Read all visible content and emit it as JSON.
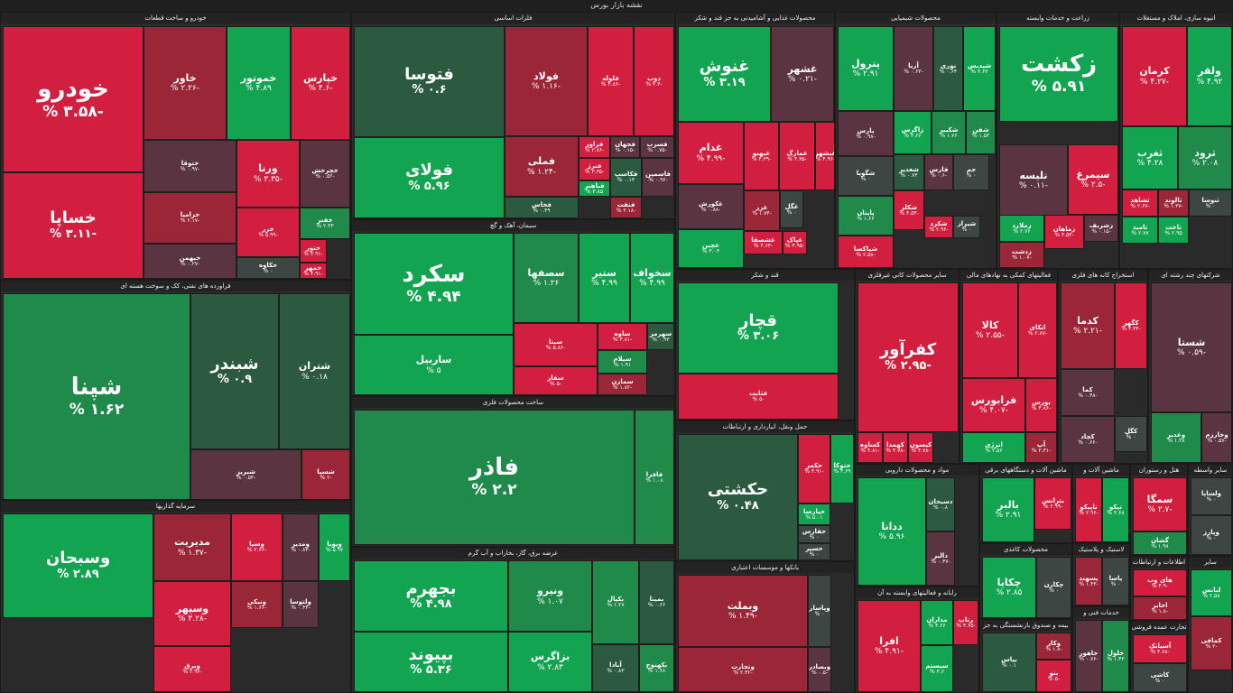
{
  "page": {
    "title": "نقشه بازار بورس"
  },
  "colors": {
    "pos_strong": "#13a452",
    "pos_medium": "#1f8a4a",
    "pos_weak": "#2c5a40",
    "neutral": "#3e4643",
    "neg_weak": "#5a3440",
    "neg_medium": "#9b2638",
    "neg_strong": "#d21f3f"
  },
  "sectors": [
    {
      "id": "auto",
      "title": "خودرو و ساخت قطعات",
      "tiles": [
        {
          "n": "خودرو",
          "p": "-۳.۵۸ %"
        },
        {
          "n": "خساپا",
          "p": "-۳.۱۱ %"
        },
        {
          "n": "خاور",
          "p": "-۲.۲۶ %"
        },
        {
          "n": "خموتور",
          "p": "۴.۸۹ %"
        },
        {
          "n": "خپارس",
          "p": "-۴.۶ %"
        },
        {
          "n": "ختوقا",
          "p": "-۰.۹۷ %"
        },
        {
          "n": "ورنا",
          "p": "-۳.۳۵ %"
        },
        {
          "n": "خچرخش",
          "p": "-۰.۵۲ %"
        },
        {
          "n": "خزامیا",
          "p": "-۲.۱۷ %"
        },
        {
          "n": "خزر",
          "p": "-۵.۹۹ %"
        },
        {
          "n": "خفنر",
          "p": "۲.۳۳ %"
        },
        {
          "n": "خبهمن",
          "p": "-۰.۲۷ %"
        },
        {
          "n": "خکاوه",
          "p": "۰ %"
        },
        {
          "n": "ختور",
          "p": "-۳.۹۱ %"
        },
        {
          "n": "خمهر",
          "p": "-۴.۹۱ %"
        }
      ]
    },
    {
      "id": "basic_metals",
      "title": "فلزات اساسی",
      "tiles": [
        {
          "n": "فتوسا",
          "p": "۰.۶ %"
        },
        {
          "n": "فولاد",
          "p": "-۱.۱۶ %"
        },
        {
          "n": "فلوله",
          "p": "-۴.۸۶ %"
        },
        {
          "n": "ذوب",
          "p": "-۳.۳ %"
        },
        {
          "n": "فولای",
          "p": "۵.۹۶ %"
        },
        {
          "n": "فملی",
          "p": "-۱.۲۴ %"
        },
        {
          "n": "فزاور",
          "p": "-۳.۸۶ %"
        },
        {
          "n": "فجهان",
          "p": "-۰.۱۵ %"
        },
        {
          "n": "فسرب",
          "p": "-۰.۷۵ %"
        },
        {
          "n": "فنرژ",
          "p": "-۳.۳۵ %"
        },
        {
          "n": "فباهنر",
          "p": "۳.۸۵ %"
        },
        {
          "n": "فکاسپ",
          "p": "۰.۱۳ %"
        },
        {
          "n": "فاسمین",
          "p": "-۰.۹۶ %"
        },
        {
          "n": "فخاس",
          "p": "۰.۴۹ %"
        },
        {
          "n": "فنفت",
          "p": "-۲.۱۸ %"
        }
      ]
    },
    {
      "id": "food",
      "title": "محصولات غذایی و آشامیدنی به جز قند و شکر",
      "tiles": [
        {
          "n": "غنوش",
          "p": "۳.۱۹ %"
        },
        {
          "n": "غشهر",
          "p": "-۰.۲۱ %"
        },
        {
          "n": "غدام",
          "p": "-۴.۹۹ %"
        },
        {
          "n": "غبهنو",
          "p": "-۴.۳۹ %"
        },
        {
          "n": "غمارگ",
          "p": "-۴.۳۵ %"
        },
        {
          "n": "غبشهر",
          "p": "-۴.۹۶ %"
        },
        {
          "n": "غکورش",
          "p": "-۰.۸۸ %"
        },
        {
          "n": "غزر",
          "p": "-۱.۷۳ %"
        },
        {
          "n": "غگل",
          "p": "۰ %"
        },
        {
          "n": "غچین",
          "p": "۴.۰۳ %"
        },
        {
          "n": "غشصفا",
          "p": "-۴.۶۳ %"
        },
        {
          "n": "غپاک",
          "p": "-۴.۹۵ %"
        }
      ]
    },
    {
      "id": "chemical",
      "title": "محصولات شیمیایی",
      "tiles": [
        {
          "n": "پترول",
          "p": "۲.۹۱ %"
        },
        {
          "n": "آریا",
          "p": "-۰.۶۳ %"
        },
        {
          "n": "نوری",
          "p": "۰.۶۴ %"
        },
        {
          "n": "شپدیس",
          "p": "۳.۶۳ %"
        },
        {
          "n": "پارس",
          "p": "-۰.۹۸ %"
        },
        {
          "n": "زاگرس",
          "p": "۳.۶۶ %"
        },
        {
          "n": "شکبیر",
          "p": "۱.۷۶ %"
        },
        {
          "n": "شفن",
          "p": "۱.۵۳ %"
        },
        {
          "n": "شگویا",
          "p": "۰ %"
        },
        {
          "n": "شغدیر",
          "p": "۰.۷۳ %"
        },
        {
          "n": "فارس",
          "p": "-۰.۶ %"
        },
        {
          "n": "جم",
          "p": "۰ %"
        },
        {
          "n": "پاپتان",
          "p": "۱.۶۶ %"
        },
        {
          "n": "شکلر",
          "p": "-۴.۵۳ %"
        },
        {
          "n": "شکرد",
          "p": "-۲.۹۶ %"
        },
        {
          "n": "شیراز",
          "p": "۰ %"
        },
        {
          "n": "شپاکسا",
          "p": "-۲.۵۸ %"
        }
      ]
    },
    {
      "id": "agri",
      "title": "زراعت و خدمات وابسته",
      "tiles": [
        {
          "n": "زکشت",
          "p": "۵.۹۱ %"
        },
        {
          "n": "تلیسه",
          "p": "-۰.۱۱ %"
        },
        {
          "n": "سیمرغ",
          "p": "-۲.۵ %"
        },
        {
          "n": "زملارد",
          "p": "۲.۷۶ %"
        },
        {
          "n": "زماهان",
          "p": "-۴.۵۳ %"
        },
        {
          "n": "زشریف",
          "p": "-۰.۱۵ %"
        },
        {
          "n": "زدشت",
          "p": "-۱.۰۷ %"
        }
      ]
    },
    {
      "id": "realestate",
      "title": "انبوه سازی، املاک و مستغلات",
      "tiles": [
        {
          "n": "کرمان",
          "p": "-۴.۲۷ %"
        },
        {
          "n": "ولقر",
          "p": "۴.۹۲ %"
        },
        {
          "n": "ثغرب",
          "p": "۴.۲۸ %"
        },
        {
          "n": "ثرود",
          "p": "۲.۰۸ %"
        },
        {
          "n": "ثشاهد",
          "p": "-۲.۶۷ %"
        },
        {
          "n": "ثالوند",
          "p": "-۱.۳۷ %"
        },
        {
          "n": "ثنوسا",
          "p": "۰ %"
        },
        {
          "n": "ثامید",
          "p": "۲.۷۷ %"
        },
        {
          "n": "ثاخت",
          "p": "۲.۹۵ %"
        }
      ]
    },
    {
      "id": "refinery",
      "title": "فراورده های نفتی، کک و سوخت هسته ای",
      "tiles": [
        {
          "n": "شپنا",
          "p": "۱.۶۲ %"
        },
        {
          "n": "شبندر",
          "p": "۰.۹ %"
        },
        {
          "n": "شتران",
          "p": "۰.۱۸ %"
        },
        {
          "n": "شبریز",
          "p": "-۰.۵۳ %"
        },
        {
          "n": "شسپا",
          "p": "-۲ %"
        }
      ]
    },
    {
      "id": "cement",
      "title": "سیمان، آهک و گچ",
      "tiles": [
        {
          "n": "سکرد",
          "p": "۴.۹۴ %"
        },
        {
          "n": "سصفها",
          "p": "۱.۲۶ %"
        },
        {
          "n": "ستیر",
          "p": "۴.۹۹ %"
        },
        {
          "n": "سخواف",
          "p": "۴.۹۹ %"
        },
        {
          "n": "ساربیل",
          "p": "۵ %"
        },
        {
          "n": "سیتا",
          "p": "-۵.۸۶ %"
        },
        {
          "n": "ساوه",
          "p": "-۳.۸۱ %"
        },
        {
          "n": "سهرمز",
          "p": "۰.۹۳ %"
        },
        {
          "n": "سیلام",
          "p": "۱.۹۱ %"
        },
        {
          "n": "سفار",
          "p": "-۵ %"
        },
        {
          "n": "سمازن",
          "p": "-۱.۸۲ %"
        }
      ]
    },
    {
      "id": "metal_products",
      "title": "ساخت محصولات فلزی",
      "tiles": [
        {
          "n": "فاذر",
          "p": "۲.۲ %"
        },
        {
          "n": "فافزا",
          "p": "۱.۰۸ %"
        }
      ]
    },
    {
      "id": "utilities",
      "title": "عرضه برق، گاز، بخاراب و آب گرم",
      "tiles": [
        {
          "n": "بجهرم",
          "p": "۴.۹۸ %"
        },
        {
          "n": "ونیرو",
          "p": "۱.۰۷ %"
        },
        {
          "n": "بکپال",
          "p": "۱.۲۷ %"
        },
        {
          "n": "بمپنا",
          "p": "۰.۶۶ %"
        },
        {
          "n": "بپیوند",
          "p": "۵.۳۶ %"
        },
        {
          "n": "بزاگرس",
          "p": "۲.۸۳ %"
        },
        {
          "n": "آبادا",
          "p": "۰.۸۳ %"
        },
        {
          "n": "بکهنوج",
          "p": "۱.۶۸ %"
        }
      ]
    },
    {
      "id": "sugar",
      "title": "قند و شکر",
      "tiles": [
        {
          "n": "قچار",
          "p": "۳.۰۶ %"
        },
        {
          "n": "قثابت",
          "p": "-۵ %"
        }
      ]
    },
    {
      "id": "transport",
      "title": "حمل ونقل، انبارداری و ارتباطات",
      "tiles": [
        {
          "n": "حکشتی",
          "p": "۰.۴۸ %"
        },
        {
          "n": "حکمر",
          "p": "-۴.۹۱ %"
        },
        {
          "n": "حتوکا",
          "p": "۴.۶۹ %"
        },
        {
          "n": "حپارسا",
          "p": "۵.۰۱ %"
        },
        {
          "n": "حفارس",
          "p": "۰ %"
        },
        {
          "n": "حسیر",
          "p": "۰ %"
        }
      ]
    },
    {
      "id": "other_nonmetal",
      "title": "سایر محصولات کانی غیرفلزی",
      "tiles": [
        {
          "n": "کفرآور",
          "p": "-۲.۹۵ %"
        },
        {
          "n": "کساوه",
          "p": "-۴.۸۱ %"
        },
        {
          "n": "کهمدا",
          "p": "-۴.۷۸ %"
        },
        {
          "n": "کیسون",
          "p": "-۴.۷۸ %"
        }
      ]
    },
    {
      "id": "aux_finance",
      "title": "فعالیتهای کمکی به نهادهای مالی",
      "tiles": [
        {
          "n": "کالا",
          "p": "-۲.۵۵ %"
        },
        {
          "n": "اتکای",
          "p": "-۲.۸۷ %"
        },
        {
          "n": "فرابورس",
          "p": "-۴.۰۷ %"
        },
        {
          "n": "بورس",
          "p": "-۴.۸۶ %"
        },
        {
          "n": "انرژی",
          "p": "۲.۵۶ %"
        },
        {
          "n": "آپ",
          "p": "-۲.۳۱ %"
        }
      ]
    },
    {
      "id": "mining",
      "title": "استخراج کانه های فلزی",
      "tiles": [
        {
          "n": "کدما",
          "p": "-۲.۲۱ %"
        },
        {
          "n": "کگهر",
          "p": "-۴.۳۴ %"
        },
        {
          "n": "کما",
          "p": "-۰.۴۸ %"
        },
        {
          "n": "کچاد",
          "p": "-۰.۶۶ %"
        },
        {
          "n": "کگل",
          "p": "۰ %"
        }
      ]
    },
    {
      "id": "conglomerate",
      "title": "شرکتهای چند رشته ای",
      "tiles": [
        {
          "n": "شستا",
          "p": "-۰.۵۹ %"
        },
        {
          "n": "وغدیر",
          "p": "۱.۲۸ %"
        },
        {
          "n": "وخارزم",
          "p": "-۰.۵۷ %"
        }
      ]
    },
    {
      "id": "investment",
      "title": "سرمایه گذاریها",
      "tiles": [
        {
          "n": "وسبحان",
          "p": "۲.۸۹ %"
        },
        {
          "n": "مدیریت",
          "p": "-۱.۳۷ %"
        },
        {
          "n": "وسپا",
          "p": "-۲.۶۶ %"
        },
        {
          "n": "ومدیر",
          "p": "-۰.۸۳ %"
        },
        {
          "n": "وپویا",
          "p": "۵.۹۷ %"
        },
        {
          "n": "وسپهر",
          "p": "-۳.۲۸ %"
        },
        {
          "n": "ونیکی",
          "p": "-۱.۶۶ %"
        },
        {
          "n": "ولتوسا",
          "p": "-۰.۴۳ %"
        },
        {
          "n": "وبرق",
          "p": "-۲.۹۶ %"
        }
      ]
    },
    {
      "id": "banks",
      "title": "بانکها و موسسات اعتباری",
      "tiles": [
        {
          "n": "وبملت",
          "p": "-۱.۴۹ %"
        },
        {
          "n": "وپاسار",
          "p": "۰ %"
        },
        {
          "n": "وتجارت",
          "p": "-۲.۴۲ %"
        },
        {
          "n": "وبصادر",
          "p": "-۰.۵ %"
        }
      ]
    },
    {
      "id": "pharma",
      "title": "مواد و محصولات دارویی",
      "tiles": [
        {
          "n": "ددانا",
          "p": "۵.۹۶ %"
        },
        {
          "n": "دسبحان",
          "p": "۰.۸ %"
        },
        {
          "n": "دالبر",
          "p": "-۰.۴۷ %"
        }
      ]
    },
    {
      "id": "machinery",
      "title": "ماشین آلات و دستگاههای برقی",
      "tiles": [
        {
          "n": "بالبر",
          "p": "۲.۹۱ %"
        },
        {
          "n": "بترانس",
          "p": "-۲.۹۹ %"
        }
      ]
    },
    {
      "id": "cars_equip",
      "title": "ماشین آلات و تجهیزات",
      "tiles": [
        {
          "n": "تاپیکو",
          "p": "-۲.۹۶ %"
        },
        {
          "n": "تپکو",
          "p": "۳.۶۸ %"
        }
      ]
    },
    {
      "id": "hotel",
      "title": "هتل و رستوران",
      "tiles": [
        {
          "n": "سمگا",
          "p": "-۲.۷ %"
        },
        {
          "n": "گشان",
          "p": "۱.۹۸ %"
        }
      ]
    },
    {
      "id": "other_fin",
      "title": "سایر واسطه",
      "tiles": [
        {
          "n": "ولساپا",
          "p": "۰ %"
        },
        {
          "n": "وپارز",
          "p": "۰ %"
        }
      ]
    },
    {
      "id": "mining_coal",
      "title": "محصولات کاغذی",
      "tiles": [
        {
          "n": "چکاپا",
          "p": "۲.۸۵ %"
        },
        {
          "n": "چکارن",
          "p": "۰ %"
        }
      ]
    },
    {
      "id": "computer",
      "title": "رایانه و فعالیتهای وابسته به آن",
      "tiles": [
        {
          "n": "افرا",
          "p": "-۴.۹۱ %"
        },
        {
          "n": "مداران",
          "p": "۴.۶۶ %"
        },
        {
          "n": "رتاپ",
          "p": "-۴.۶۵ %"
        },
        {
          "n": "سیستم",
          "p": "۳.۶ %"
        }
      ]
    },
    {
      "id": "insurance",
      "title": "بیمه و صندوق بازنشستگی به جز",
      "tiles": [
        {
          "n": "بپاس",
          "p": "۰.۱ %"
        },
        {
          "n": "وکار",
          "p": "-۱.۸ %"
        },
        {
          "n": "بنو",
          "p": "-۵ %"
        }
      ]
    },
    {
      "id": "rubber",
      "title": "لاستیک و پلاستیک",
      "tiles": [
        {
          "n": "پسهند",
          "p": "-۱.۴۳ %"
        },
        {
          "n": "پاسا",
          "p": "۰ %"
        }
      ]
    },
    {
      "id": "tech_eng",
      "title": "خدمات فنی و مهندسی",
      "tiles": [
        {
          "n": "خاهور",
          "p": "-۰.۷۶ %"
        },
        {
          "n": "خلول",
          "p": "۱.۴۳ %"
        }
      ]
    },
    {
      "id": "telecom",
      "title": "اطلاعات و ارتباطات",
      "tiles": [
        {
          "n": "های وب",
          "p": "-۴.۹ %"
        },
        {
          "n": "اخابر",
          "p": "-۱.۸ %"
        }
      ]
    },
    {
      "id": "trading",
      "title": "تجارت عمده فروشی به جز",
      "tiles": [
        {
          "n": "آسیاتک",
          "p": "-۴.۶۸ %"
        },
        {
          "n": "کاشی",
          "p": "۰ %"
        }
      ]
    },
    {
      "id": "other_misc",
      "title": "سایر",
      "tiles": [
        {
          "n": "لبانس",
          "p": "۲.۵۸ %"
        },
        {
          "n": "کمافی",
          "p": "-۲ %"
        }
      ]
    }
  ]
}
